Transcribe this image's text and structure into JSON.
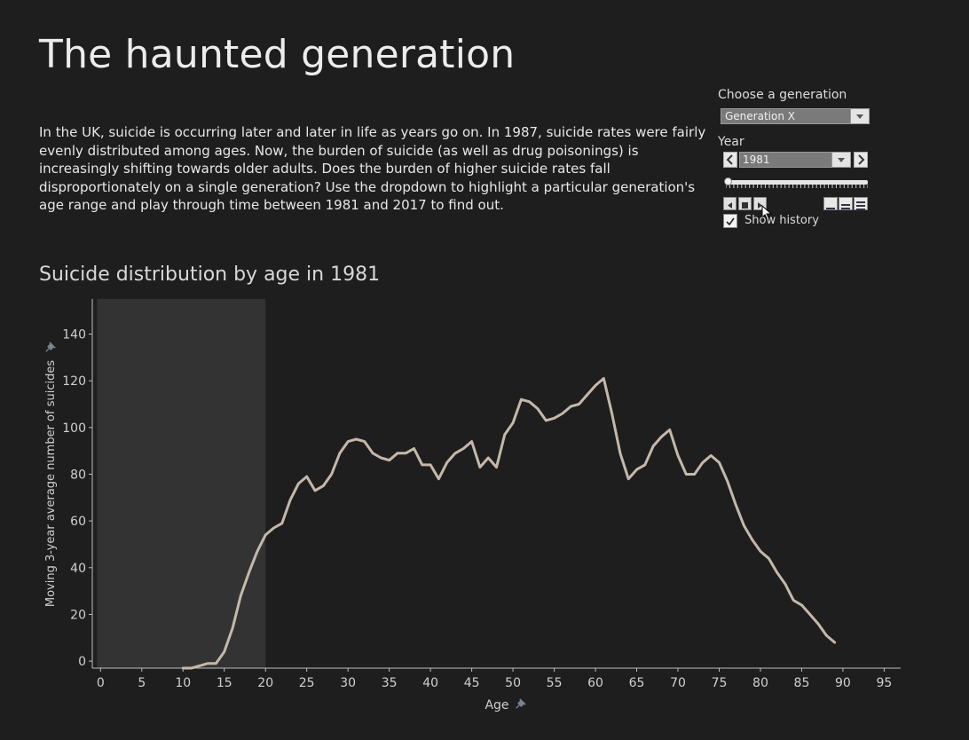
{
  "page": {
    "title": "The haunted generation",
    "intro": "In the UK, suicide is occurring later and later in life as years go on. In 1987, suicide rates were fairly evenly distributed among ages. Now, the burden of suicide (as well as drug poisonings) is increasingly shifting towards older adults. Does the burden of higher suicide rates fall disproportionately on a single generation? Use the dropdown to highlight a particular generation's age range and play through time between 1981 and 2017 to find out.",
    "chart_title": "Suicide distribution by age in  1981"
  },
  "controls": {
    "generation_label": "Choose a generation",
    "generation_value": "Generation X",
    "year_label": "Year",
    "year_value": "1981",
    "slider_fraction": 0.0,
    "show_history_label": "Show history",
    "show_history_checked": true
  },
  "colors": {
    "background": "#1e1e1e",
    "line": "#c5b8aa",
    "highlight_band": "#333333",
    "axis": "#bfbfbf"
  },
  "chart_data": {
    "type": "line",
    "title": "Suicide distribution by age in  1981",
    "xlabel": "Age",
    "ylabel": "Moving 3-year average number of suicides",
    "xlim": [
      -1,
      97
    ],
    "ylim": [
      -3,
      155
    ],
    "xticks": [
      0,
      5,
      10,
      15,
      20,
      25,
      30,
      35,
      40,
      45,
      50,
      55,
      60,
      65,
      70,
      75,
      80,
      85,
      90,
      95
    ],
    "yticks": [
      0,
      20,
      40,
      60,
      80,
      100,
      120,
      140
    ],
    "highlight_range": [
      0,
      20
    ],
    "highlight_label": "Generation X",
    "grid": false,
    "series": [
      {
        "x": [
          10,
          11,
          12,
          13,
          14,
          15,
          16,
          17,
          18,
          19,
          20,
          21,
          22,
          23,
          24,
          25,
          26,
          27,
          28,
          29,
          30,
          31,
          32,
          33,
          34,
          35,
          36,
          37,
          38,
          39,
          40,
          41,
          42,
          43,
          44,
          45,
          46,
          47,
          48,
          49,
          50,
          51,
          52,
          53,
          54,
          55,
          56,
          57,
          58,
          59,
          60,
          61,
          62,
          63,
          64,
          65,
          66,
          67,
          68,
          69,
          70,
          71,
          72,
          73,
          74,
          75,
          76,
          77,
          78,
          79,
          80,
          81,
          82,
          83,
          84,
          85,
          86,
          87,
          88,
          89
        ],
        "y": [
          -3,
          -3,
          -2,
          -1,
          -1,
          4,
          14,
          28,
          38,
          47,
          54,
          57,
          59,
          69,
          76,
          79,
          73,
          75,
          80,
          89,
          94,
          95,
          94,
          89,
          87,
          86,
          89,
          89,
          91,
          84,
          84,
          78,
          85,
          89,
          91,
          94,
          83,
          87,
          83,
          97,
          102,
          112,
          111,
          108,
          103,
          104,
          106,
          109,
          110,
          114,
          118,
          121,
          106,
          89,
          78,
          82,
          84,
          92,
          96,
          99,
          88,
          80,
          80,
          85,
          88,
          85,
          77,
          67,
          58,
          52,
          47,
          44,
          38,
          33,
          26,
          24,
          20,
          16,
          11,
          8
        ]
      }
    ]
  }
}
